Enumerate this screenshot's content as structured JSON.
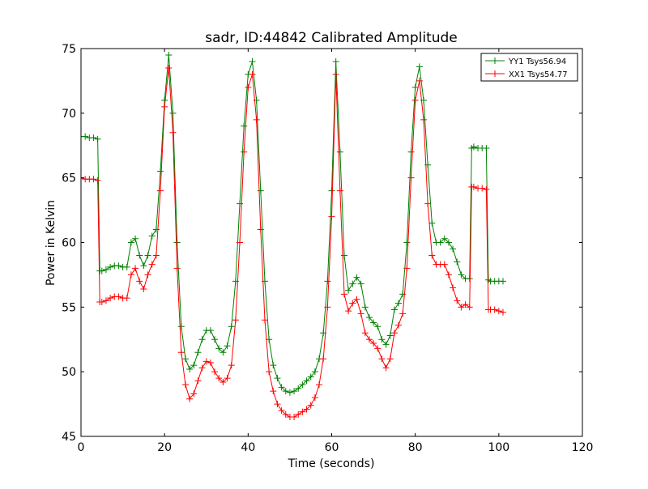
{
  "chart_data": {
    "type": "line",
    "title": "sadr, ID:44842 Calibrated Amplitude",
    "xlabel": "Time (seconds)",
    "ylabel": "Power in Kelvin",
    "xlim": [
      0,
      120
    ],
    "ylim": [
      45,
      75
    ],
    "xticks": [
      0,
      20,
      40,
      60,
      80,
      100,
      120
    ],
    "yticks": [
      45,
      50,
      55,
      60,
      65,
      70,
      75
    ],
    "grid": false,
    "legend": "top-right",
    "marker": "+",
    "series": [
      {
        "name": "YY1 Tsys56.94",
        "color": "#008000",
        "x": [
          0,
          1,
          2,
          3,
          4,
          4.5,
          5,
          6,
          7,
          8,
          9,
          10,
          11,
          12,
          13,
          14,
          15,
          16,
          17,
          18,
          19,
          20,
          21,
          22,
          23,
          24,
          25,
          26,
          27,
          28,
          29,
          30,
          31,
          32,
          33,
          34,
          35,
          36,
          37,
          38,
          39,
          40,
          41,
          42,
          43,
          44,
          45,
          46,
          47,
          48,
          49,
          50,
          51,
          52,
          53,
          54,
          55,
          56,
          57,
          58,
          59,
          60,
          61,
          62,
          63,
          64,
          65,
          66,
          67,
          68,
          69,
          70,
          71,
          72,
          73,
          74,
          75,
          76,
          77,
          78,
          79,
          80,
          81,
          82,
          83,
          84,
          85,
          86,
          87,
          88,
          89,
          90,
          91,
          92,
          93,
          93.5,
          94,
          95,
          96,
          97,
          97.5,
          98,
          99,
          100,
          101
        ],
        "y": [
          68.2,
          68.2,
          68.1,
          68.1,
          68.0,
          57.8,
          57.8,
          57.9,
          58.1,
          58.2,
          58.2,
          58.1,
          58.1,
          60.0,
          60.3,
          59.0,
          58.2,
          59.0,
          60.5,
          61.0,
          65.5,
          71.0,
          74.5,
          70.0,
          60.0,
          53.5,
          51.0,
          50.2,
          50.5,
          51.5,
          52.5,
          53.2,
          53.2,
          52.5,
          51.8,
          51.5,
          52.0,
          53.5,
          57.0,
          63.0,
          69.0,
          73.0,
          74.0,
          71.0,
          64.0,
          57.0,
          52.5,
          50.5,
          49.5,
          48.8,
          48.5,
          48.4,
          48.5,
          48.7,
          49.0,
          49.3,
          49.6,
          50.0,
          51.0,
          53.0,
          57.0,
          64.0,
          74.0,
          67.0,
          59.0,
          56.3,
          56.8,
          57.3,
          56.8,
          55.0,
          54.2,
          53.8,
          53.5,
          52.5,
          52.1,
          52.8,
          54.8,
          55.3,
          56.0,
          60.0,
          67.0,
          72.0,
          73.6,
          71.0,
          66.0,
          61.5,
          60.0,
          60.0,
          60.3,
          60.0,
          59.5,
          58.5,
          57.5,
          57.2,
          57.2,
          67.3,
          67.4,
          67.3,
          67.3,
          67.3,
          57.1,
          57.0,
          57.0,
          57.0,
          57.0
        ]
      },
      {
        "name": "XX1 Tsys54.77",
        "color": "#ff0000",
        "x": [
          0,
          1,
          2,
          3,
          4,
          4.5,
          5,
          6,
          7,
          8,
          9,
          10,
          11,
          12,
          13,
          14,
          15,
          16,
          17,
          18,
          19,
          20,
          21,
          22,
          23,
          24,
          25,
          26,
          27,
          28,
          29,
          30,
          31,
          32,
          33,
          34,
          35,
          36,
          37,
          38,
          39,
          40,
          41,
          42,
          43,
          44,
          45,
          46,
          47,
          48,
          49,
          50,
          51,
          52,
          53,
          54,
          55,
          56,
          57,
          58,
          59,
          60,
          61,
          62,
          63,
          64,
          65,
          66,
          67,
          68,
          69,
          70,
          71,
          72,
          73,
          74,
          75,
          76,
          77,
          78,
          79,
          80,
          81,
          82,
          83,
          84,
          85,
          86,
          87,
          88,
          89,
          90,
          91,
          92,
          93,
          93.5,
          94,
          95,
          96,
          97,
          97.5,
          98,
          99,
          100,
          101
        ],
        "y": [
          65.0,
          64.9,
          64.9,
          64.9,
          64.8,
          55.4,
          55.4,
          55.5,
          55.7,
          55.8,
          55.8,
          55.7,
          55.7,
          57.5,
          58.0,
          57.0,
          56.4,
          57.5,
          58.3,
          59.0,
          64.0,
          70.5,
          73.5,
          68.5,
          58.0,
          51.5,
          49.0,
          47.9,
          48.3,
          49.3,
          50.3,
          50.8,
          50.7,
          50.0,
          49.5,
          49.2,
          49.5,
          50.5,
          54.0,
          60.0,
          67.0,
          72.0,
          73.0,
          69.5,
          61.0,
          54.0,
          50.0,
          48.5,
          47.5,
          47.0,
          46.7,
          46.5,
          46.5,
          46.7,
          46.9,
          47.1,
          47.4,
          48.0,
          49.0,
          51.0,
          55.0,
          62.0,
          73.0,
          64.0,
          56.0,
          54.7,
          55.3,
          55.6,
          54.5,
          53.0,
          52.5,
          52.2,
          51.8,
          51.0,
          50.3,
          51.0,
          53.0,
          53.6,
          54.5,
          58.0,
          65.0,
          71.0,
          72.5,
          69.5,
          63.0,
          59.0,
          58.3,
          58.3,
          58.3,
          57.5,
          56.5,
          55.5,
          55.0,
          55.2,
          55.0,
          64.3,
          64.3,
          64.2,
          64.2,
          64.1,
          54.8,
          54.8,
          54.8,
          54.7,
          54.6
        ]
      }
    ]
  }
}
